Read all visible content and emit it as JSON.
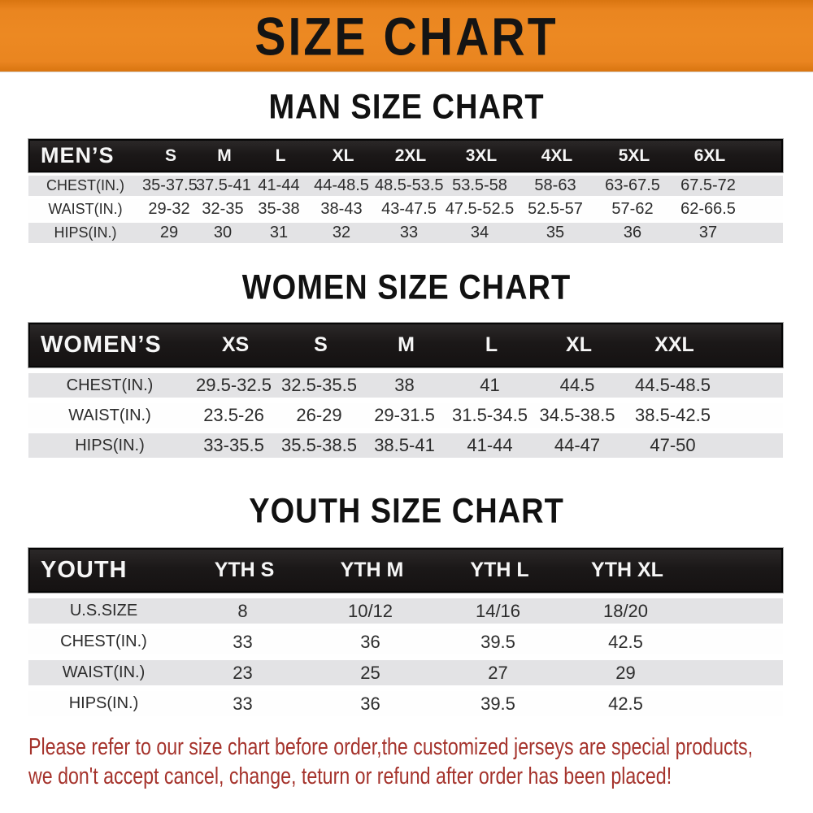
{
  "banner": {
    "title": "SIZE CHART"
  },
  "colors": {
    "banner_bg": "#ea8520",
    "header_bar_bg": "#1b1818",
    "row_stripe_bg": "#e3e3e5",
    "footer_text": "#a5332c"
  },
  "sections": {
    "men": {
      "title": "MAN SIZE CHART",
      "header_label": "MEN’S",
      "sizes": [
        "S",
        "M",
        "L",
        "XL",
        "2XL",
        "3XL",
        "4XL",
        "5XL",
        "6XL"
      ],
      "rows": [
        {
          "label": "CHEST(IN.)",
          "values": [
            "35-37.5",
            "37.5-41",
            "41-44",
            "44-48.5",
            "48.5-53.5",
            "53.5-58",
            "58-63",
            "63-67.5",
            "67.5-72"
          ]
        },
        {
          "label": "WAIST(IN.)",
          "values": [
            "29-32",
            "32-35",
            "35-38",
            "38-43",
            "43-47.5",
            "47.5-52.5",
            "52.5-57",
            "57-62",
            "62-66.5"
          ]
        },
        {
          "label": "HIPS(IN.)",
          "values": [
            "29",
            "30",
            "31",
            "32",
            "33",
            "34",
            "35",
            "36",
            "37"
          ]
        }
      ]
    },
    "women": {
      "title": "WOMEN SIZE CHART",
      "header_label": "WOMEN’S",
      "sizes": [
        "XS",
        "S",
        "M",
        "L",
        "XL",
        "XXL"
      ],
      "rows": [
        {
          "label": "CHEST(IN.)",
          "values": [
            "29.5-32.5",
            "32.5-35.5",
            "38",
            "41",
            "44.5",
            "44.5-48.5"
          ]
        },
        {
          "label": "WAIST(IN.)",
          "values": [
            "23.5-26",
            "26-29",
            "29-31.5",
            "31.5-34.5",
            "34.5-38.5",
            "38.5-42.5"
          ]
        },
        {
          "label": "HIPS(IN.)",
          "values": [
            "33-35.5",
            "35.5-38.5",
            "38.5-41",
            "41-44",
            "44-47",
            "47-50"
          ]
        }
      ]
    },
    "youth": {
      "title": "YOUTH SIZE CHART",
      "header_label": "YOUTH",
      "sizes": [
        "YTH S",
        "YTH M",
        "YTH L",
        "YTH XL"
      ],
      "rows": [
        {
          "label": "U.S.SIZE",
          "values": [
            "8",
            "10/12",
            "14/16",
            "18/20"
          ]
        },
        {
          "label": "CHEST(IN.)",
          "values": [
            "33",
            "36",
            "39.5",
            "42.5"
          ]
        },
        {
          "label": "WAIST(IN.)",
          "values": [
            "23",
            "25",
            "27",
            "29"
          ]
        },
        {
          "label": "HIPS(IN.)",
          "values": [
            "33",
            "36",
            "39.5",
            "42.5"
          ]
        }
      ]
    }
  },
  "footer": {
    "line1": "Please refer to our size chart before order,the customized jerseys are special products,",
    "line2": "we don't accept cancel, change, teturn or refund after order has been placed!"
  }
}
